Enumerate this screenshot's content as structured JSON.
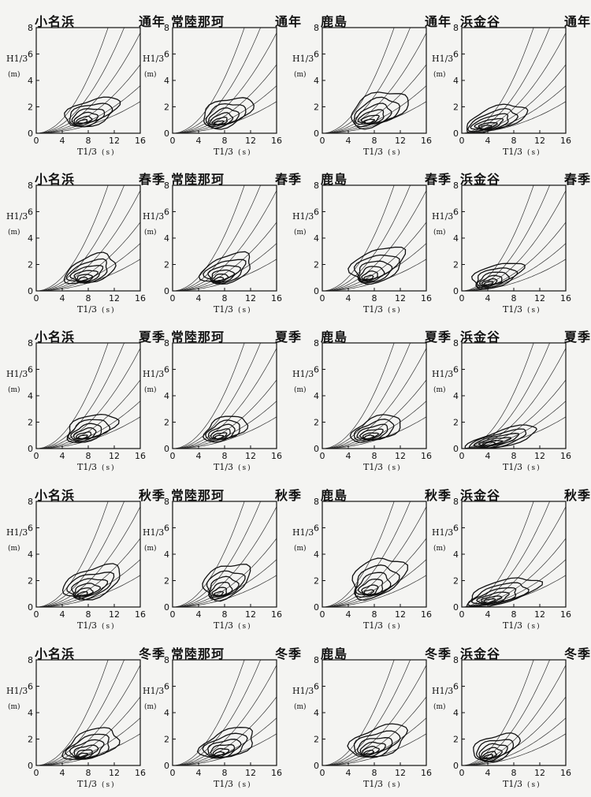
{
  "chart_data": {
    "type": "contour",
    "xlabel": "T1/3",
    "xunit": "(s)",
    "ylabel": "H1/3",
    "yunit": "(m)",
    "xticks": [
      0,
      4,
      8,
      12,
      16
    ],
    "yticks": [
      0,
      2,
      4,
      6,
      8
    ],
    "xlim": [
      0,
      16
    ],
    "ylim": [
      0,
      8
    ],
    "stations": [
      "小名浜",
      "常陸那珂",
      "鹿島",
      "浜金谷"
    ],
    "seasons": [
      "通年",
      "春季",
      "夏季",
      "秋季",
      "冬季"
    ],
    "steepness_curves": [
      0.006,
      0.009,
      0.013,
      0.019,
      0.028,
      0.042
    ],
    "panels_note": "rows = seasons, columns = stations",
    "panels": [
      {
        "station": "小名浜",
        "season": "通年",
        "peak_T": 7.0,
        "peak_H": 0.8,
        "max_T": 12.5,
        "max_H": 3.3
      },
      {
        "station": "常陸那珂",
        "season": "通年",
        "peak_T": 7.0,
        "peak_H": 0.7,
        "max_T": 12.0,
        "max_H": 3.4
      },
      {
        "station": "鹿島",
        "season": "通年",
        "peak_T": 7.0,
        "peak_H": 0.8,
        "max_T": 13.0,
        "max_H": 4.0
      },
      {
        "station": "浜金谷",
        "season": "通年",
        "peak_T": 3.5,
        "peak_H": 0.4,
        "max_T": 10.0,
        "max_H": 2.6
      },
      {
        "station": "小名浜",
        "season": "春季",
        "peak_T": 7.0,
        "peak_H": 0.8,
        "max_T": 12.0,
        "max_H": 3.4
      },
      {
        "station": "常陸那珂",
        "season": "春季",
        "peak_T": 7.0,
        "peak_H": 0.8,
        "max_T": 12.0,
        "max_H": 3.5
      },
      {
        "station": "鹿島",
        "season": "春季",
        "peak_T": 7.0,
        "peak_H": 0.9,
        "max_T": 12.5,
        "max_H": 4.2
      },
      {
        "station": "浜金谷",
        "season": "春季",
        "peak_T": 4.0,
        "peak_H": 0.5,
        "max_T": 9.0,
        "max_H": 2.6
      },
      {
        "station": "小名浜",
        "season": "夏季",
        "peak_T": 7.0,
        "peak_H": 0.8,
        "max_T": 12.0,
        "max_H": 3.2
      },
      {
        "station": "常陸那珂",
        "season": "夏季",
        "peak_T": 7.0,
        "peak_H": 0.8,
        "max_T": 11.0,
        "max_H": 3.0
      },
      {
        "station": "鹿島",
        "season": "夏季",
        "peak_T": 7.0,
        "peak_H": 0.8,
        "max_T": 12.0,
        "max_H": 3.0
      },
      {
        "station": "浜金谷",
        "season": "夏季",
        "peak_T": 4.0,
        "peak_H": 0.3,
        "max_T": 12.0,
        "max_H": 1.8
      },
      {
        "station": "小名浜",
        "season": "秋季",
        "peak_T": 7.0,
        "peak_H": 0.9,
        "max_T": 13.0,
        "max_H": 3.9
      },
      {
        "station": "常陸那珂",
        "season": "秋季",
        "peak_T": 7.0,
        "peak_H": 0.9,
        "max_T": 11.5,
        "max_H": 4.2
      },
      {
        "station": "鹿島",
        "season": "秋季",
        "peak_T": 7.0,
        "peak_H": 1.0,
        "max_T": 12.5,
        "max_H": 4.8
      },
      {
        "station": "浜金谷",
        "season": "秋季",
        "peak_T": 4.0,
        "peak_H": 0.4,
        "max_T": 12.0,
        "max_H": 2.6
      },
      {
        "station": "小名浜",
        "season": "冬季",
        "peak_T": 7.0,
        "peak_H": 0.7,
        "max_T": 12.5,
        "max_H": 3.5
      },
      {
        "station": "常陸那珂",
        "season": "冬季",
        "peak_T": 7.0,
        "peak_H": 0.8,
        "max_T": 12.5,
        "max_H": 3.5
      },
      {
        "station": "鹿島",
        "season": "冬季",
        "peak_T": 7.0,
        "peak_H": 0.9,
        "max_T": 13.0,
        "max_H": 3.8
      },
      {
        "station": "浜金谷",
        "season": "冬季",
        "peak_T": 4.0,
        "peak_H": 0.6,
        "max_T": 8.5,
        "max_H": 3.0
      }
    ]
  }
}
